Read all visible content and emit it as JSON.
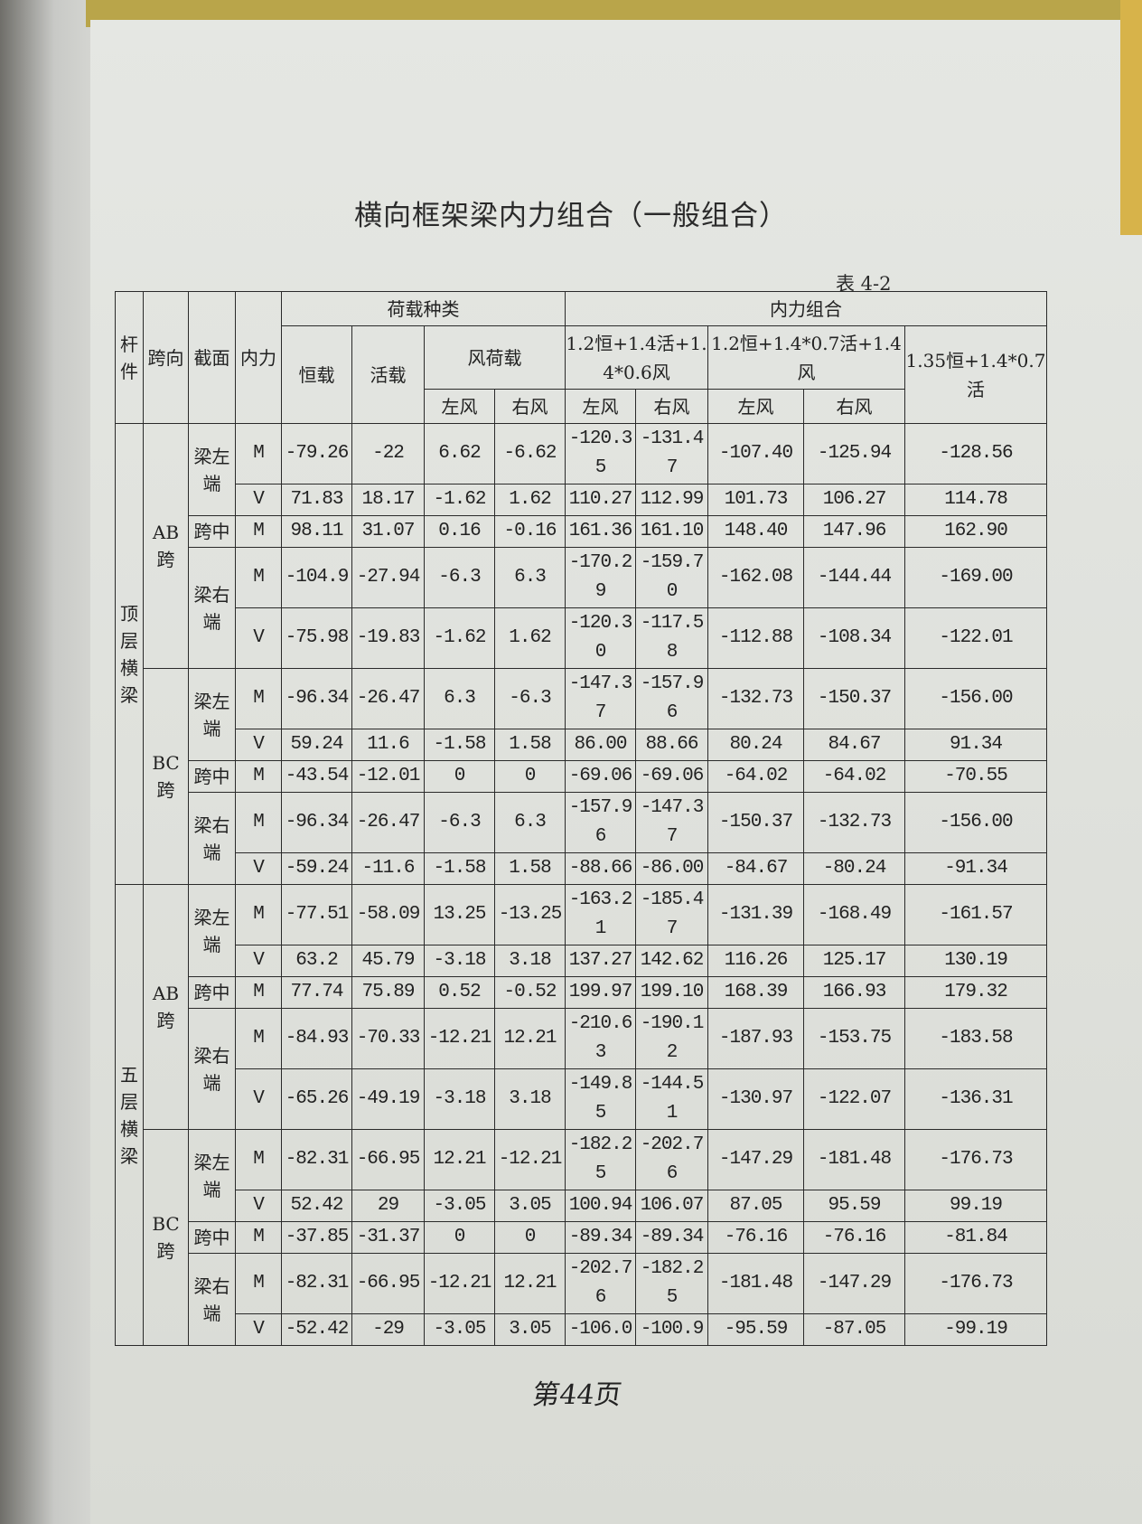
{
  "title": "横向框架梁内力组合（一般组合）",
  "table_number": "表 4-2",
  "headers": {
    "member": "杆件",
    "span": "跨向",
    "section": "截面",
    "force": "内力",
    "load_types": "荷载种类",
    "dead": "恒载",
    "live": "活载",
    "wind": "风荷载",
    "combos": "内力组合",
    "combo1": "1.2恒+1.4活+1.4*0.6风",
    "combo2": "1.2恒+1.4*0.7活+1.4风",
    "combo3": "1.35恒+1.4*0.7活",
    "left_wind": "左风",
    "right_wind": "右风"
  },
  "members": [
    {
      "name": "顶层横梁",
      "spans": [
        {
          "name": "AB跨",
          "sections": [
            {
              "name": "梁左端",
              "rows": [
                {
                  "force": "M",
                  "values": [
                    "-79.26",
                    "-22",
                    "6.62",
                    "-6.62",
                    "-120.35",
                    "-131.47",
                    "-107.40",
                    "-125.94",
                    "-128.56"
                  ]
                },
                {
                  "force": "V",
                  "values": [
                    "71.83",
                    "18.17",
                    "-1.62",
                    "1.62",
                    "110.27",
                    "112.99",
                    "101.73",
                    "106.27",
                    "114.78"
                  ]
                }
              ]
            },
            {
              "name": "跨中",
              "rows": [
                {
                  "force": "M",
                  "values": [
                    "98.11",
                    "31.07",
                    "0.16",
                    "-0.16",
                    "161.36",
                    "161.10",
                    "148.40",
                    "147.96",
                    "162.90"
                  ]
                }
              ]
            },
            {
              "name": "梁右端",
              "rows": [
                {
                  "force": "M",
                  "values": [
                    "-104.9",
                    "-27.94",
                    "-6.3",
                    "6.3",
                    "-170.29",
                    "-159.70",
                    "-162.08",
                    "-144.44",
                    "-169.00"
                  ]
                },
                {
                  "force": "V",
                  "values": [
                    "-75.98",
                    "-19.83",
                    "-1.62",
                    "1.62",
                    "-120.30",
                    "-117.58",
                    "-112.88",
                    "-108.34",
                    "-122.01"
                  ]
                }
              ]
            }
          ]
        },
        {
          "name": "BC跨",
          "sections": [
            {
              "name": "梁左端",
              "rows": [
                {
                  "force": "M",
                  "values": [
                    "-96.34",
                    "-26.47",
                    "6.3",
                    "-6.3",
                    "-147.37",
                    "-157.96",
                    "-132.73",
                    "-150.37",
                    "-156.00"
                  ]
                },
                {
                  "force": "V",
                  "values": [
                    "59.24",
                    "11.6",
                    "-1.58",
                    "1.58",
                    "86.00",
                    "88.66",
                    "80.24",
                    "84.67",
                    "91.34"
                  ]
                }
              ]
            },
            {
              "name": "跨中",
              "rows": [
                {
                  "force": "M",
                  "values": [
                    "-43.54",
                    "-12.01",
                    "0",
                    "0",
                    "-69.06",
                    "-69.06",
                    "-64.02",
                    "-64.02",
                    "-70.55"
                  ]
                }
              ]
            },
            {
              "name": "梁右端",
              "rows": [
                {
                  "force": "M",
                  "values": [
                    "-96.34",
                    "-26.47",
                    "-6.3",
                    "6.3",
                    "-157.96",
                    "-147.37",
                    "-150.37",
                    "-132.73",
                    "-156.00"
                  ]
                },
                {
                  "force": "V",
                  "values": [
                    "-59.24",
                    "-11.6",
                    "-1.58",
                    "1.58",
                    "-88.66",
                    "-86.00",
                    "-84.67",
                    "-80.24",
                    "-91.34"
                  ]
                }
              ]
            }
          ]
        }
      ]
    },
    {
      "name": "五层横梁",
      "spans": [
        {
          "name": "AB跨",
          "sections": [
            {
              "name": "梁左端",
              "rows": [
                {
                  "force": "M",
                  "values": [
                    "-77.51",
                    "-58.09",
                    "13.25",
                    "-13.25",
                    "-163.21",
                    "-185.47",
                    "-131.39",
                    "-168.49",
                    "-161.57"
                  ]
                },
                {
                  "force": "V",
                  "values": [
                    "63.2",
                    "45.79",
                    "-3.18",
                    "3.18",
                    "137.27",
                    "142.62",
                    "116.26",
                    "125.17",
                    "130.19"
                  ]
                }
              ]
            },
            {
              "name": "跨中",
              "rows": [
                {
                  "force": "M",
                  "values": [
                    "77.74",
                    "75.89",
                    "0.52",
                    "-0.52",
                    "199.97",
                    "199.10",
                    "168.39",
                    "166.93",
                    "179.32"
                  ]
                }
              ]
            },
            {
              "name": "梁右端",
              "rows": [
                {
                  "force": "M",
                  "values": [
                    "-84.93",
                    "-70.33",
                    "-12.21",
                    "12.21",
                    "-210.63",
                    "-190.12",
                    "-187.93",
                    "-153.75",
                    "-183.58"
                  ]
                },
                {
                  "force": "V",
                  "values": [
                    "-65.26",
                    "-49.19",
                    "-3.18",
                    "3.18",
                    "-149.85",
                    "-144.51",
                    "-130.97",
                    "-122.07",
                    "-136.31"
                  ]
                }
              ]
            }
          ]
        },
        {
          "name": "BC跨",
          "sections": [
            {
              "name": "梁左端",
              "rows": [
                {
                  "force": "M",
                  "values": [
                    "-82.31",
                    "-66.95",
                    "12.21",
                    "-12.21",
                    "-182.25",
                    "-202.76",
                    "-147.29",
                    "-181.48",
                    "-176.73"
                  ]
                },
                {
                  "force": "V",
                  "values": [
                    "52.42",
                    "29",
                    "-3.05",
                    "3.05",
                    "100.94",
                    "106.07",
                    "87.05",
                    "95.59",
                    "99.19"
                  ]
                }
              ]
            },
            {
              "name": "跨中",
              "rows": [
                {
                  "force": "M",
                  "values": [
                    "-37.85",
                    "-31.37",
                    "0",
                    "0",
                    "-89.34",
                    "-89.34",
                    "-76.16",
                    "-76.16",
                    "-81.84"
                  ]
                }
              ]
            },
            {
              "name": "梁右端",
              "rows": [
                {
                  "force": "M",
                  "values": [
                    "-82.31",
                    "-66.95",
                    "-12.21",
                    "12.21",
                    "-202.76",
                    "-182.25",
                    "-181.48",
                    "-147.29",
                    "-176.73"
                  ]
                },
                {
                  "force": "V",
                  "values": [
                    "-52.42",
                    "-29",
                    "-3.05",
                    "3.05",
                    "-106.0",
                    "-100.9",
                    "-95.59",
                    "-87.05",
                    "-99.19"
                  ]
                }
              ]
            }
          ]
        }
      ]
    }
  ],
  "footer_handwritten": "第44页"
}
